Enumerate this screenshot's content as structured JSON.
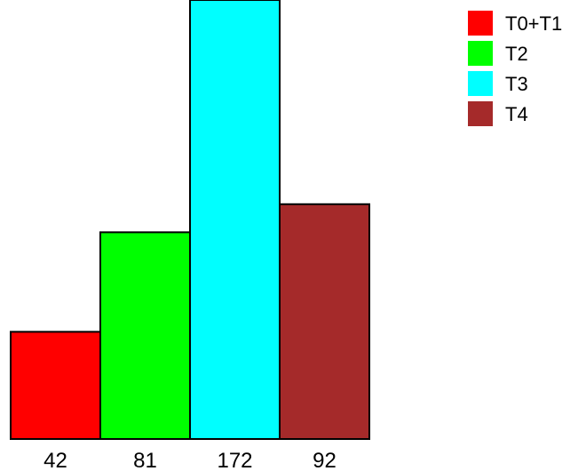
{
  "chart_data": {
    "type": "bar",
    "categories": [
      "42",
      "81",
      "172",
      "92"
    ],
    "values": [
      42,
      81,
      172,
      92
    ],
    "series_names": [
      "T0+T1",
      "T2",
      "T3",
      "T4"
    ],
    "colors": [
      "#ff0000",
      "#00ff00",
      "#00ffff",
      "#a52a2a"
    ],
    "ylim": [
      0,
      172
    ],
    "title": "",
    "xlabel": "",
    "ylabel": "",
    "grid": false,
    "legend_position": "top-right"
  }
}
